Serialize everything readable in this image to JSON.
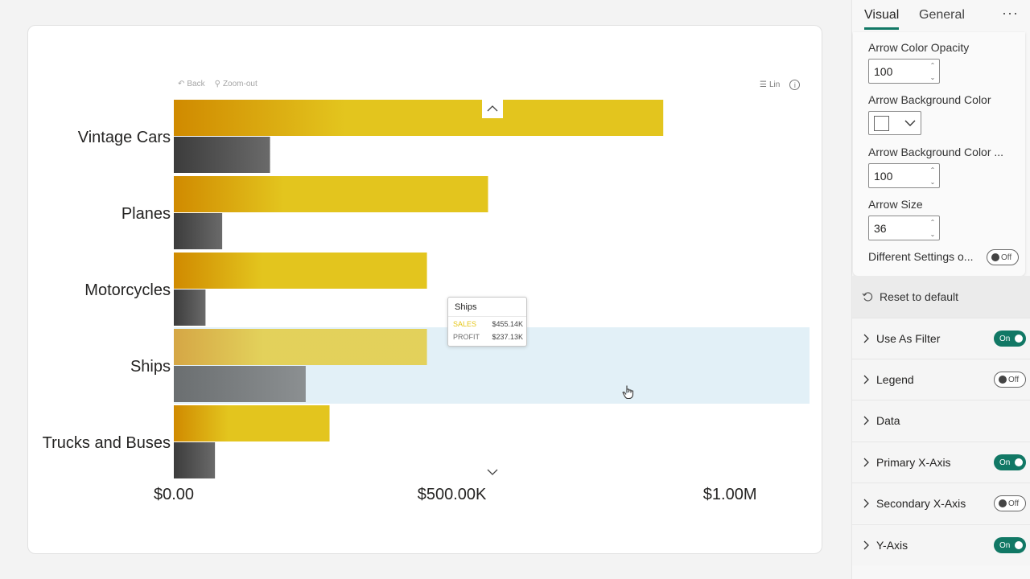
{
  "visual": {
    "toolbar": {
      "back_label": "Back",
      "zoom_out_label": "Zoom-out",
      "lin_label": "Lin"
    },
    "tooltip": {
      "title": "Ships",
      "rows": [
        {
          "label": "SALES",
          "value": "$455.14K"
        },
        {
          "label": "PROFIT",
          "value": "$237.13K"
        }
      ]
    }
  },
  "chart_data": {
    "type": "bar",
    "orientation": "horizontal",
    "categories": [
      "Vintage Cars",
      "Planes",
      "Motorcycles",
      "Ships",
      "Trucks and Buses"
    ],
    "series": [
      {
        "name": "SALES",
        "values": [
          880000,
          565000,
          455140,
          455140,
          280000
        ],
        "color": "#e3c51e"
      },
      {
        "name": "PROFIT",
        "values": [
          173000,
          87000,
          57000,
          237130,
          74000
        ],
        "color": "#555555"
      }
    ],
    "xlim": [
      0,
      1143000
    ],
    "xticks": [
      0,
      500000,
      1000000
    ],
    "xtick_labels": [
      "$0.00",
      "$500.00K",
      "$1.00M"
    ],
    "highlighted_category": "Ships",
    "grid": false
  },
  "pane": {
    "tabs": [
      "Visual",
      "General"
    ],
    "more_label": "···",
    "settings": {
      "arrow_color_opacity_label": "Arrow Color Opacity",
      "arrow_color_opacity_value": "100",
      "arrow_bg_color_label": "Arrow Background Color",
      "arrow_bg_color_opacity_label": "Arrow Background Color ...",
      "arrow_bg_color_opacity_value": "100",
      "arrow_size_label": "Arrow Size",
      "arrow_size_value": "36",
      "different_settings_label": "Different Settings o...",
      "different_settings_toggle": "Off"
    },
    "reset_label": "Reset to default",
    "sections": [
      {
        "label": "Use As Filter",
        "toggle": "On"
      },
      {
        "label": "Legend",
        "toggle": "Off"
      },
      {
        "label": "Data",
        "toggle": ""
      },
      {
        "label": "Primary X-Axis",
        "toggle": "On"
      },
      {
        "label": "Secondary X-Axis",
        "toggle": "Off"
      },
      {
        "label": "Y-Axis",
        "toggle": "On"
      }
    ]
  }
}
